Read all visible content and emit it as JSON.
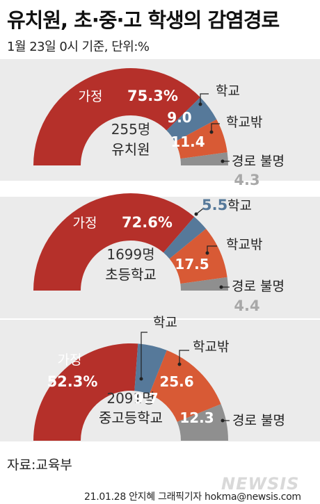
{
  "title": "유치원, 초·중·고 학생의 감염경로",
  "subtitle": "1월 23일 0시 기준, 단위:%",
  "source": "자료:교육부",
  "credit": "21.01.28 안지혜 그래픽기자 hokma@newsis.com",
  "watermark": "NEWSIS",
  "colors": {
    "home": "#b5302a",
    "school": "#56799a",
    "outside": "#d85a35",
    "unknown": "#8f8f8f",
    "panel": "#ebebeb"
  },
  "chart_data": [
    {
      "type": "pie",
      "center_count": "255명",
      "center_label": "유치원",
      "slices": [
        {
          "label": "가정",
          "value": 75.3,
          "value_text": "75.3%"
        },
        {
          "label": "학교",
          "value": 9.0,
          "value_text": "9.0"
        },
        {
          "label": "학교밖",
          "value": 11.4,
          "value_text": "11.4"
        },
        {
          "label": "경로 불명",
          "value": 4.3,
          "value_text": "4.3"
        }
      ]
    },
    {
      "type": "pie",
      "center_count": "1699명",
      "center_label": "초등학교",
      "slices": [
        {
          "label": "가정",
          "value": 72.6,
          "value_text": "72.6%"
        },
        {
          "label": "학교",
          "value": 5.5,
          "value_text": "5.5"
        },
        {
          "label": "학교밖",
          "value": 17.5,
          "value_text": "17.5"
        },
        {
          "label": "경로 불명",
          "value": 4.4,
          "value_text": "4.4"
        }
      ]
    },
    {
      "type": "pie",
      "center_count": "2091명",
      "center_label": "중고등학교",
      "slices": [
        {
          "label": "가정",
          "value": 52.3,
          "value_text": "52.3%"
        },
        {
          "label": "학교",
          "value": 9.7,
          "value_text": "9.7"
        },
        {
          "label": "학교밖",
          "value": 25.6,
          "value_text": "25.6"
        },
        {
          "label": "경로 불명",
          "value": 12.3,
          "value_text": "12.3"
        }
      ]
    }
  ]
}
